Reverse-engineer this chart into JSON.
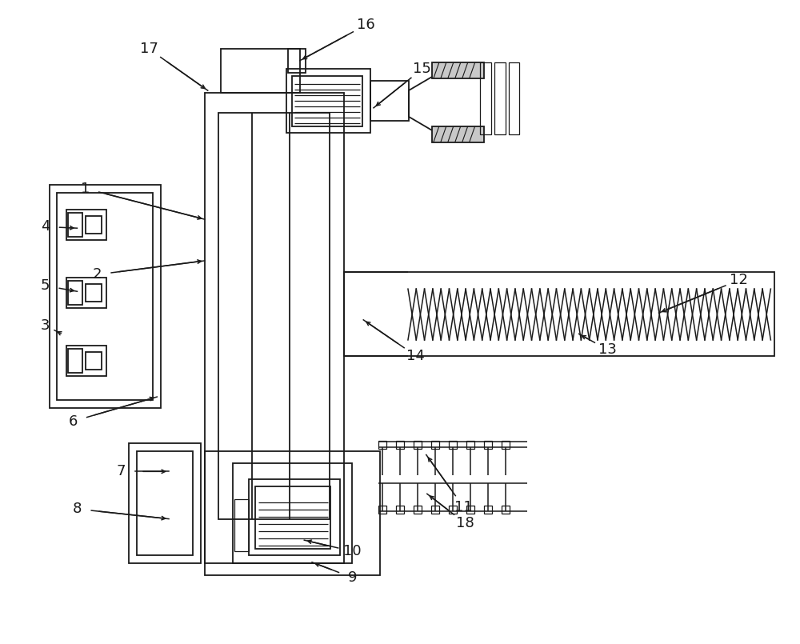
{
  "bg_color": "#ffffff",
  "line_color": "#1a1a1a",
  "lw": 1.3,
  "figsize": [
    10.0,
    8.05
  ],
  "dpi": 100,
  "xlim": [
    0,
    1000
  ],
  "ylim": [
    0,
    805
  ]
}
